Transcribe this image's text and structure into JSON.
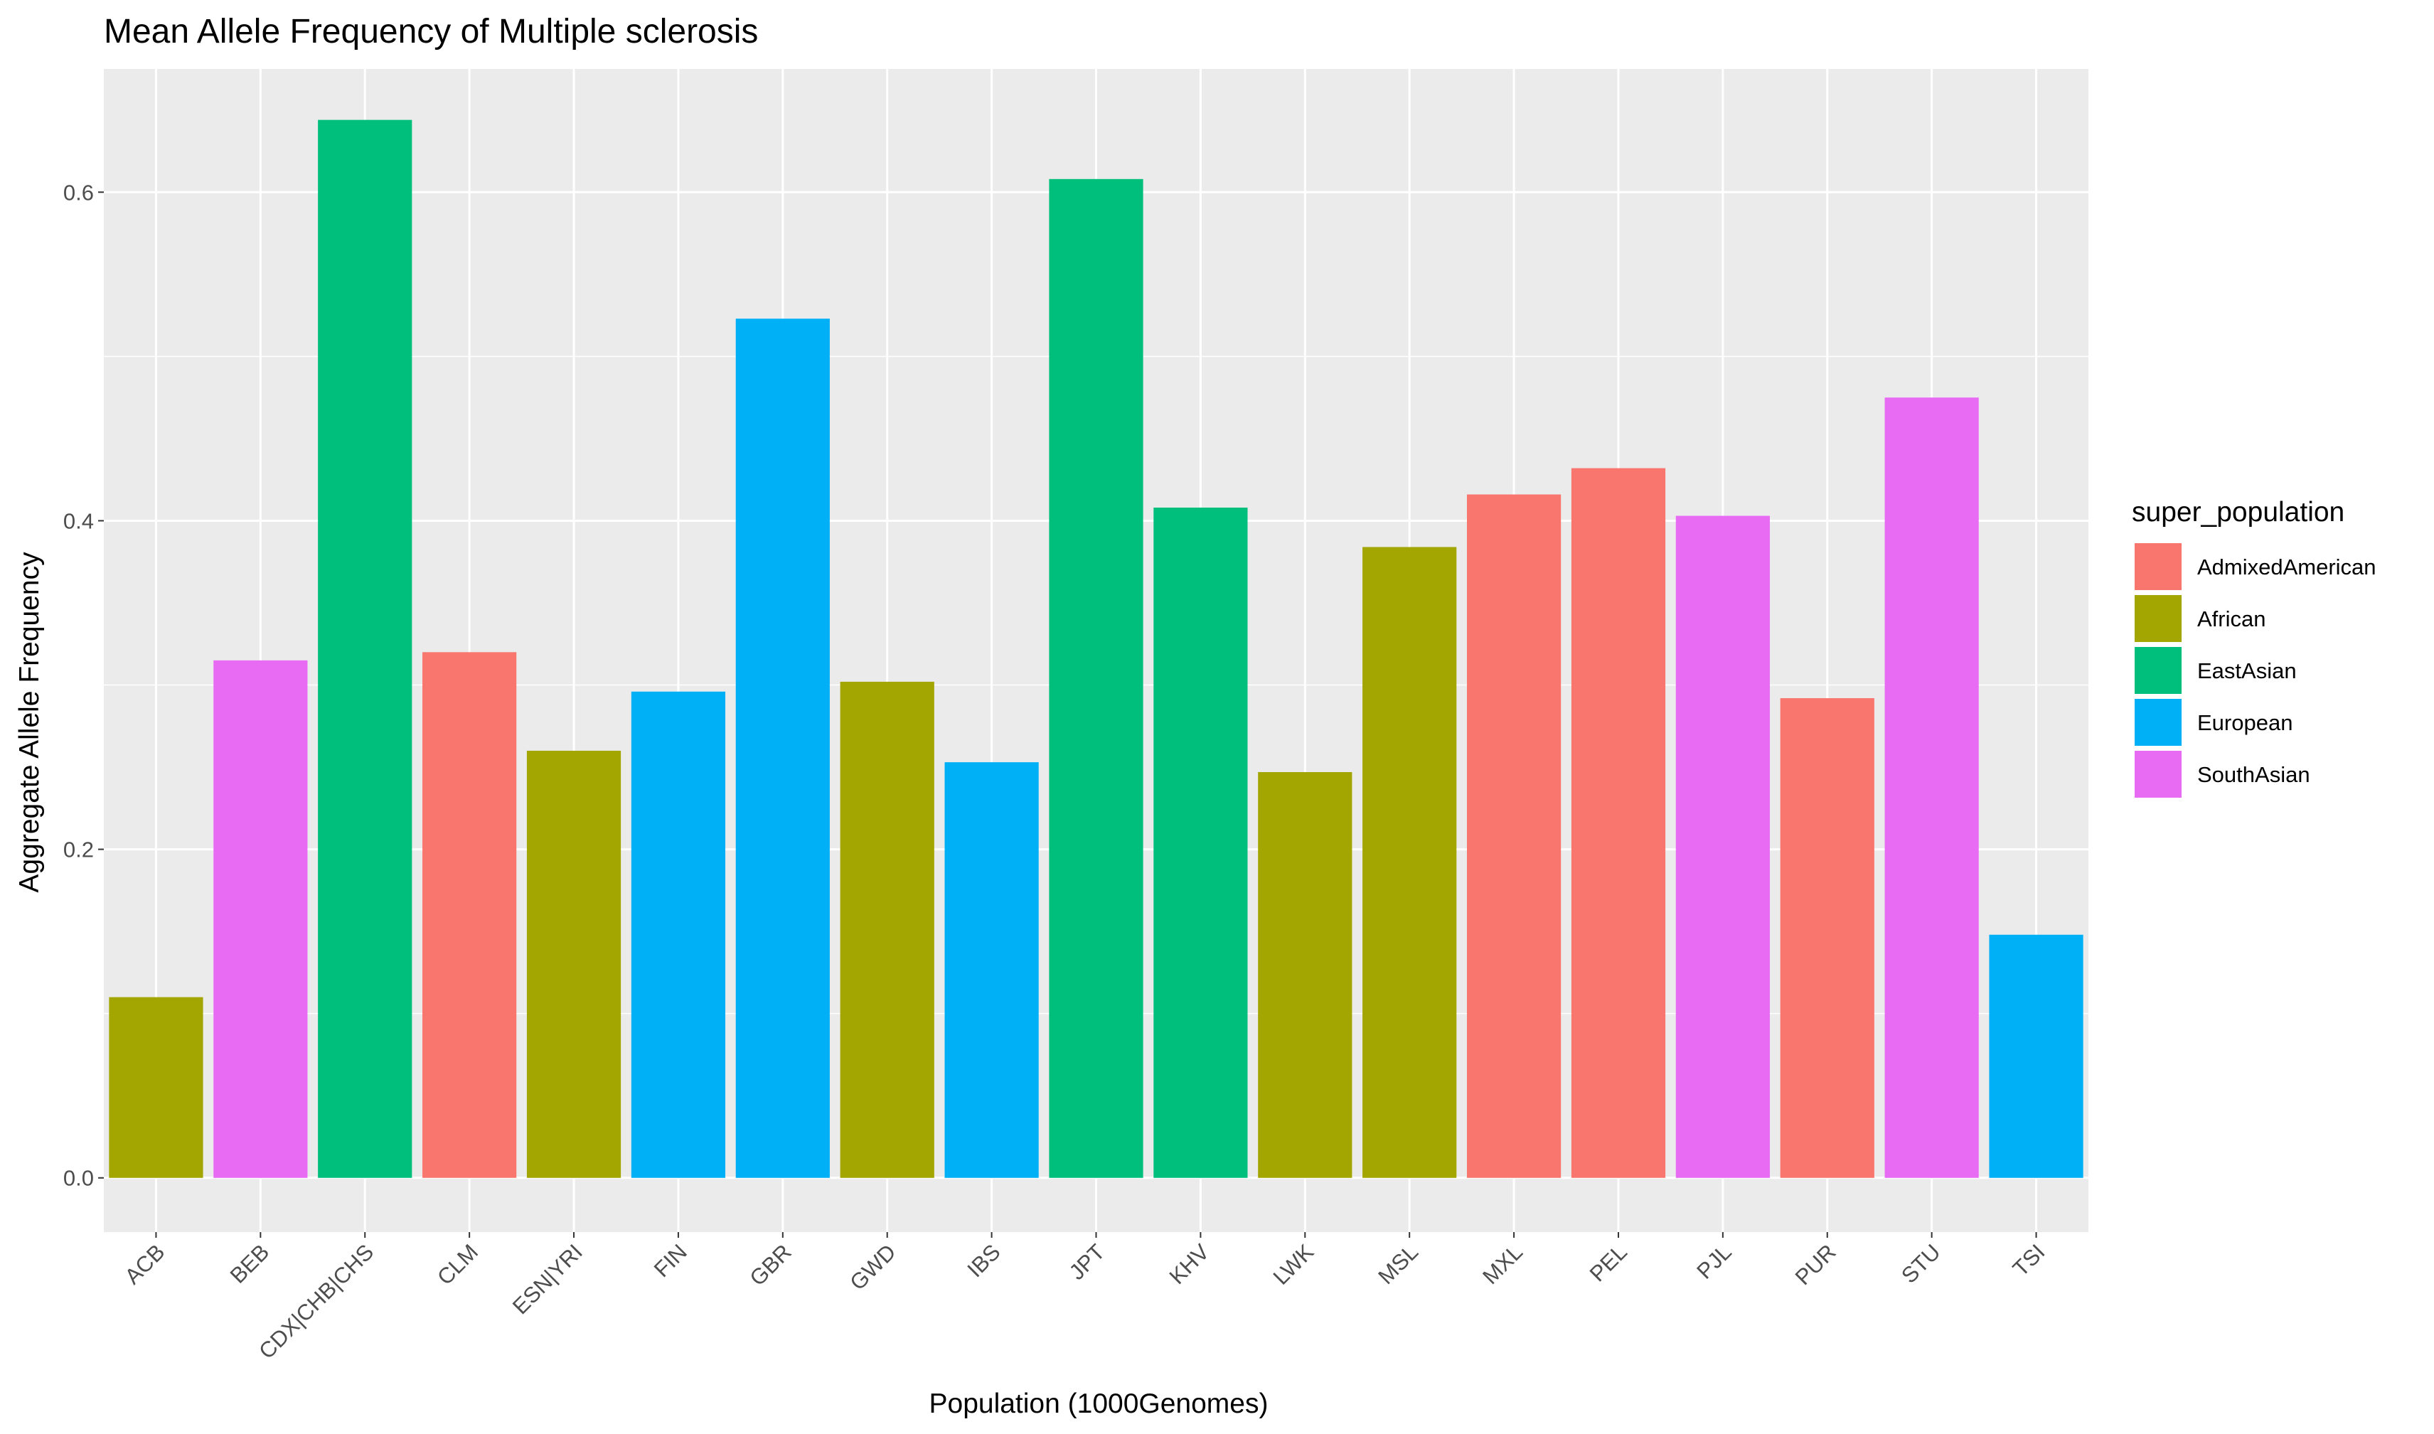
{
  "chart_data": {
    "type": "bar",
    "title": "Mean Allele Frequency of Multiple sclerosis",
    "xlabel": "Population (1000Genomes)",
    "ylabel": "Aggregate Allele Frequency",
    "ylim": [
      -0.033,
      0.675
    ],
    "yticks": [
      0.0,
      0.2,
      0.4,
      0.6
    ],
    "ytick_labels": [
      "0.0",
      "0.2",
      "0.4",
      "0.6"
    ],
    "grid": true,
    "legend_position": "right",
    "legend": {
      "title": "super_population",
      "items": [
        {
          "label": "AdmixedAmerican",
          "color": "#F8766D"
        },
        {
          "label": "African",
          "color": "#A3A500"
        },
        {
          "label": "EastAsian",
          "color": "#00BF7D"
        },
        {
          "label": "European",
          "color": "#00B0F6"
        },
        {
          "label": "SouthAsian",
          "color": "#E76BF3"
        }
      ]
    },
    "categories": [
      "ACB",
      "BEB",
      "CDX|CHB|CHS",
      "CLM",
      "ESN|YRI",
      "FIN",
      "GBR",
      "GWD",
      "IBS",
      "JPT",
      "KHV",
      "LWK",
      "MSL",
      "MXL",
      "PEL",
      "PJL",
      "PUR",
      "STU",
      "TSI"
    ],
    "values": [
      0.11,
      0.315,
      0.644,
      0.32,
      0.26,
      0.296,
      0.523,
      0.302,
      0.253,
      0.608,
      0.408,
      0.247,
      0.384,
      0.416,
      0.432,
      0.403,
      0.292,
      0.475,
      0.148
    ],
    "groups": [
      "African",
      "SouthAsian",
      "EastAsian",
      "AdmixedAmerican",
      "African",
      "European",
      "European",
      "African",
      "European",
      "EastAsian",
      "EastAsian",
      "African",
      "African",
      "AdmixedAmerican",
      "AdmixedAmerican",
      "SouthAsian",
      "AdmixedAmerican",
      "SouthAsian",
      "European"
    ],
    "colors": {
      "AdmixedAmerican": "#F8766D",
      "African": "#A3A500",
      "EastAsian": "#00BF7D",
      "European": "#00B0F6",
      "SouthAsian": "#E76BF3"
    },
    "panel_background": "#EBEBEB",
    "grid_color": "#FFFFFF"
  }
}
